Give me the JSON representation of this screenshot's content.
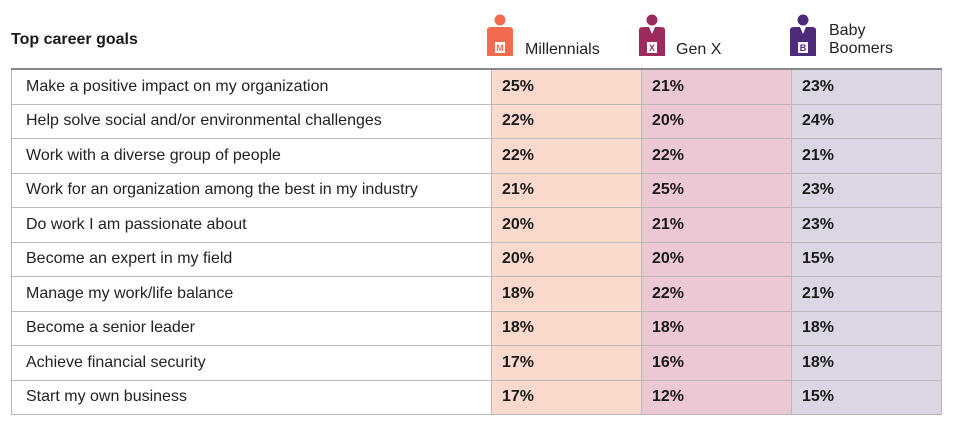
{
  "chart_data": {
    "type": "table",
    "title": "Top career goals",
    "columns": [
      {
        "name": "Millennials",
        "badge": "M",
        "color": "#f26b4f",
        "cell_color": "#fbd9cc"
      },
      {
        "name": "Gen X",
        "badge": "X",
        "color": "#9c2a5c",
        "cell_color": "#ebc8d4"
      },
      {
        "name": "Baby Boomers",
        "name_lines": [
          "Baby",
          "Boomers"
        ],
        "badge": "B",
        "color": "#4e2a7a",
        "cell_color": "#dcd6e4"
      }
    ],
    "rows": [
      {
        "goal": "Make a positive impact on my organization",
        "values": [
          "25%",
          "21%",
          "23%"
        ]
      },
      {
        "goal": "Help solve social and/or environmental challenges",
        "values": [
          "22%",
          "20%",
          "24%"
        ]
      },
      {
        "goal": "Work with a diverse group of people",
        "values": [
          "22%",
          "22%",
          "21%"
        ]
      },
      {
        "goal": "Work for an organization among the best in my industry",
        "values": [
          "21%",
          "25%",
          "23%"
        ]
      },
      {
        "goal": "Do work I am passionate about",
        "values": [
          "20%",
          "21%",
          "23%"
        ]
      },
      {
        "goal": "Become an expert in my field",
        "values": [
          "20%",
          "20%",
          "15%"
        ]
      },
      {
        "goal": "Manage my work/life balance",
        "values": [
          "18%",
          "22%",
          "21%"
        ]
      },
      {
        "goal": "Become a senior leader",
        "values": [
          "18%",
          "18%",
          "18%"
        ]
      },
      {
        "goal": "Achieve financial security",
        "values": [
          "17%",
          "16%",
          "18%"
        ]
      },
      {
        "goal": "Start my own business",
        "values": [
          "17%",
          "12%",
          "15%"
        ]
      }
    ]
  }
}
